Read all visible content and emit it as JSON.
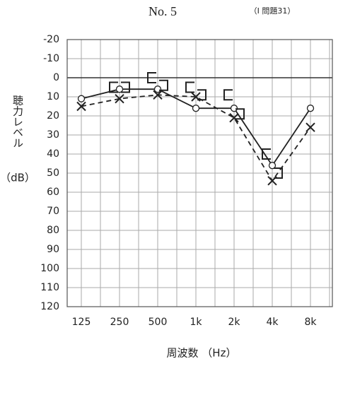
{
  "chart_data": {
    "type": "line",
    "title": "No. 5",
    "subtitle": "（Ⅰ 問題31）",
    "y_label": "聴力レベル",
    "y_unit": "（dB）",
    "x_label": "周波数 （Hz）",
    "categories": [
      "125",
      "250",
      "500",
      "1k",
      "2k",
      "4k",
      "8k"
    ],
    "ylim": [
      -20,
      120
    ],
    "yticks": [
      -20,
      -10,
      0,
      10,
      20,
      30,
      40,
      50,
      60,
      70,
      80,
      90,
      100,
      110,
      120
    ],
    "y_inverted": true,
    "grid": true,
    "series": [
      {
        "color": "#222",
        "marker": "o",
        "line": "solid",
        "values": [
          11,
          6,
          6,
          16,
          16,
          46,
          16
        ]
      },
      {
        "color": "#222",
        "marker": "x",
        "line": "dashed",
        "values": [
          15,
          11,
          9,
          10,
          21,
          54,
          26
        ]
      },
      {
        "color": "#222",
        "marker": "[",
        "line": "none",
        "values": [
          null,
          5,
          0,
          5,
          9,
          40,
          null
        ]
      },
      {
        "color": "#222",
        "marker": "]",
        "line": "none",
        "values": [
          null,
          5,
          4,
          9,
          19,
          50,
          null
        ]
      }
    ]
  }
}
